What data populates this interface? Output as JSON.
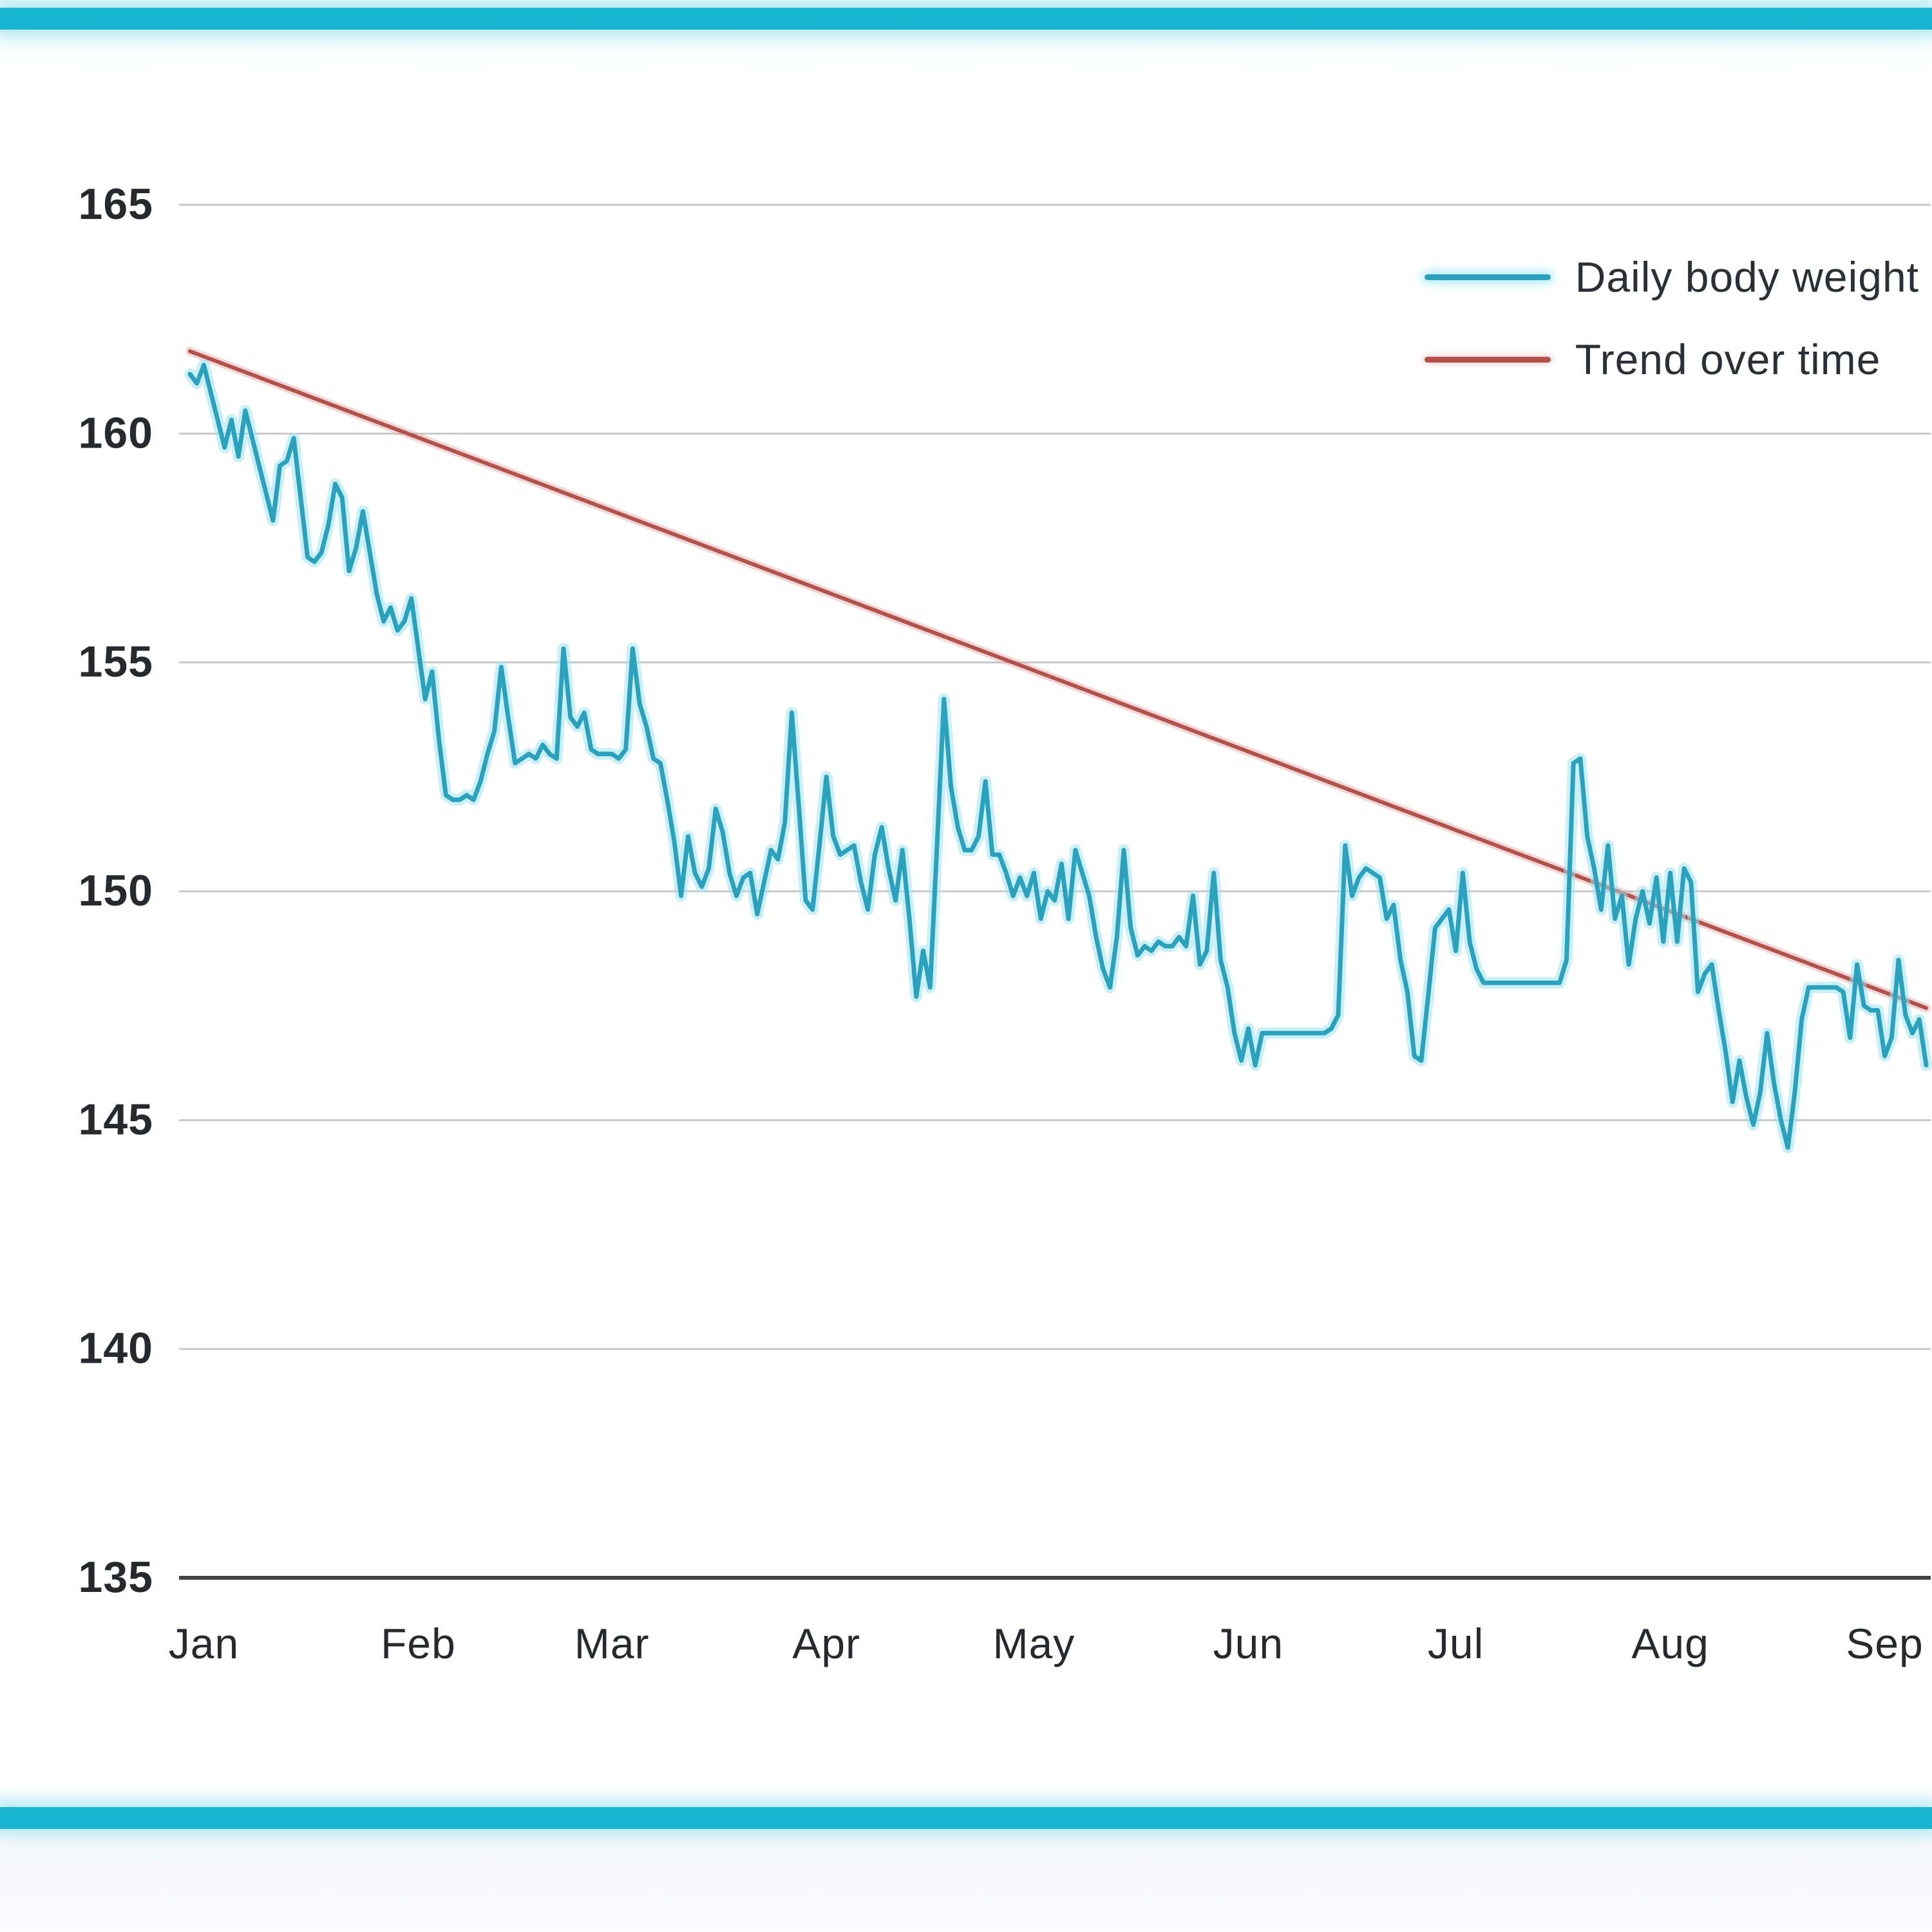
{
  "page": {
    "accent_bar_color": "#17b4d4"
  },
  "chart_data": {
    "type": "line",
    "title": "",
    "xlabel": "",
    "ylabel": "",
    "grid": true,
    "legend_position": "top-right",
    "x_axis": {
      "tick_labels": [
        "Jan",
        "Feb",
        "Mar",
        "Apr",
        "May",
        "Jun",
        "Jul",
        "Aug",
        "Sep"
      ],
      "tick_day_indices": [
        2,
        33,
        61,
        92,
        122,
        153,
        183,
        214,
        245
      ]
    },
    "y_axis": {
      "min": 135,
      "max": 165,
      "ticks": [
        165,
        160,
        155,
        150,
        145,
        140,
        135
      ]
    },
    "series": [
      {
        "name": "Daily body weight",
        "color": "#2aa2bd",
        "glow_color": "#9fe2ef",
        "values": [
          161.3,
          161.1,
          161.5,
          160.9,
          160.3,
          159.7,
          160.3,
          159.5,
          160.5,
          159.9,
          159.3,
          158.7,
          158.1,
          159.3,
          159.4,
          159.9,
          158.6,
          157.3,
          157.2,
          157.4,
          158.0,
          158.9,
          158.6,
          157.0,
          157.5,
          158.3,
          157.4,
          156.5,
          155.9,
          156.2,
          155.7,
          155.9,
          156.4,
          155.3,
          154.2,
          154.8,
          153.3,
          152.1,
          152.0,
          152.0,
          152.1,
          152.0,
          152.4,
          153.0,
          153.5,
          154.9,
          153.8,
          152.8,
          152.9,
          153.0,
          152.9,
          153.2,
          153.0,
          152.9,
          155.3,
          153.8,
          153.6,
          153.9,
          153.1,
          153.0,
          153.0,
          153.0,
          152.9,
          153.1,
          155.3,
          154.1,
          153.6,
          152.9,
          152.8,
          152.0,
          151.1,
          149.9,
          151.2,
          150.4,
          150.1,
          150.5,
          151.8,
          151.3,
          150.4,
          149.9,
          150.3,
          150.4,
          149.5,
          150.2,
          150.9,
          150.7,
          151.5,
          153.9,
          151.9,
          149.8,
          149.6,
          151.0,
          152.5,
          151.2,
          150.8,
          150.9,
          151.0,
          150.2,
          149.6,
          150.8,
          151.4,
          150.5,
          149.8,
          150.9,
          149.4,
          147.7,
          148.7,
          147.9,
          151.0,
          154.2,
          152.3,
          151.4,
          150.9,
          150.9,
          151.2,
          152.4,
          150.8,
          150.8,
          150.4,
          149.9,
          150.3,
          149.9,
          150.4,
          149.4,
          150.0,
          149.8,
          150.6,
          149.4,
          150.9,
          150.4,
          149.9,
          149.0,
          148.3,
          147.9,
          149.0,
          150.9,
          149.2,
          148.6,
          148.8,
          148.7,
          148.9,
          148.8,
          148.8,
          149.0,
          148.8,
          149.9,
          148.4,
          148.7,
          150.4,
          148.5,
          147.9,
          146.9,
          146.3,
          147.0,
          146.2,
          146.9,
          146.9,
          146.9,
          146.9,
          146.9,
          146.9,
          146.9,
          146.9,
          146.9,
          146.9,
          147.0,
          147.3,
          151.0,
          149.9,
          150.3,
          150.5,
          150.4,
          150.3,
          149.4,
          149.7,
          148.5,
          147.8,
          146.4,
          146.3,
          147.7,
          149.2,
          149.4,
          149.6,
          148.7,
          150.4,
          148.9,
          148.3,
          148.0,
          148.0,
          148.0,
          148.0,
          148.0,
          148.0,
          148.0,
          148.0,
          148.0,
          148.0,
          148.0,
          148.0,
          148.5,
          152.8,
          152.9,
          151.2,
          150.5,
          149.6,
          151.0,
          149.4,
          149.9,
          148.4,
          149.4,
          150.0,
          149.3,
          150.3,
          148.9,
          150.4,
          148.9,
          150.5,
          150.2,
          147.8,
          148.2,
          148.4,
          147.4,
          146.5,
          145.4,
          146.3,
          145.5,
          144.9,
          145.6,
          146.9,
          145.8,
          145.0,
          144.4,
          145.6,
          147.2,
          147.9,
          147.9,
          147.9,
          147.9,
          147.9,
          147.8,
          146.8,
          148.4,
          147.5,
          147.4,
          147.4,
          146.4,
          146.8,
          148.5,
          147.3,
          146.9,
          147.2,
          146.2
        ]
      },
      {
        "name": "Trend over time",
        "color": "#b5514c",
        "glow_color": "#dba9a5",
        "trend": {
          "start": 161.8,
          "end": 147.45
        }
      }
    ],
    "style": {
      "gridline_color": "#c9c9c9",
      "axis_color": "#3d4248",
      "tick_label_color": "#26292e"
    },
    "layout": {
      "plot_left": 278,
      "plot_right": 2998,
      "line_start_x": 295,
      "line_end_x": 2991,
      "grid_top_y": 318,
      "grid_bottom_y": 2450,
      "x_label_y": 2525,
      "y_label_right_x": 238
    }
  }
}
